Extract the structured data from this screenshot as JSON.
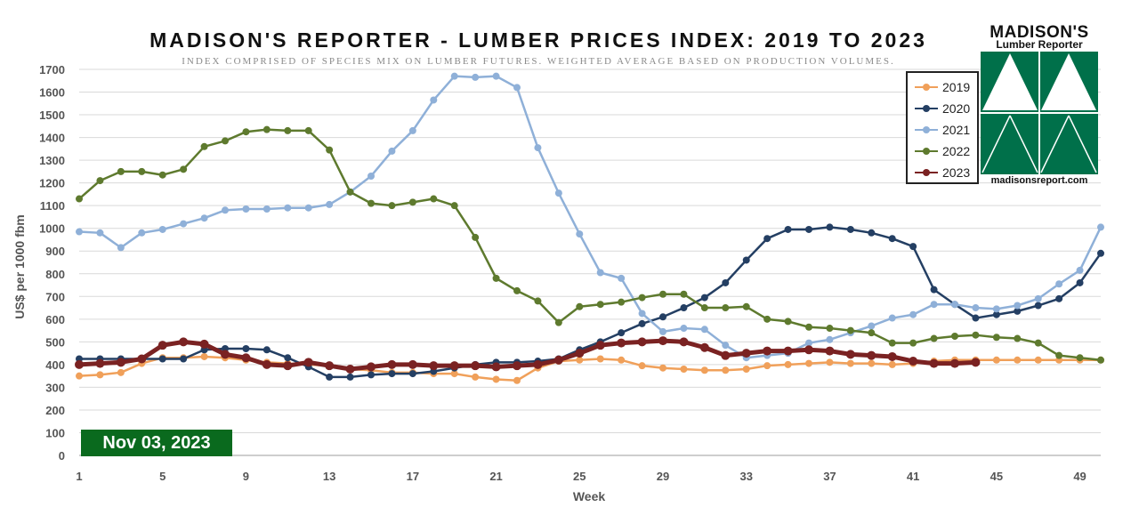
{
  "chart_data": {
    "type": "line",
    "title": "MADISON'S REPORTER - LUMBER PRICES INDEX: 2019 TO 2023",
    "subtitle": "INDEX COMPRISED OF SPECIES MIX ON LUMBER FUTURES. WEIGHTED AVERAGE BASED ON PRODUCTION VOLUMES.",
    "xlabel": "Week",
    "ylabel": "US$ per 1000 fbm",
    "xlim": [
      1,
      50
    ],
    "ylim": [
      0,
      1700
    ],
    "x_ticks": [
      1,
      5,
      9,
      13,
      17,
      21,
      25,
      29,
      33,
      37,
      41,
      45,
      49
    ],
    "y_ticks": [
      0,
      100,
      200,
      300,
      400,
      500,
      600,
      700,
      800,
      900,
      1000,
      1100,
      1200,
      1300,
      1400,
      1500,
      1600,
      1700
    ],
    "grid": "horizontal",
    "legend_position": "top-right",
    "series": [
      {
        "name": "2019",
        "color": "#f0a05a",
        "values": [
          350,
          355,
          365,
          405,
          430,
          430,
          435,
          430,
          420,
          410,
          405,
          400,
          395,
          380,
          375,
          365,
          365,
          360,
          360,
          345,
          335,
          330,
          385,
          415,
          420,
          425,
          420,
          395,
          385,
          380,
          375,
          375,
          380,
          395,
          400,
          405,
          410,
          405,
          405,
          400,
          405,
          415,
          420,
          420,
          420,
          420,
          420,
          420,
          420,
          420
        ]
      },
      {
        "name": "2020",
        "color": "#243f63",
        "values": [
          425,
          425,
          425,
          425,
          425,
          425,
          465,
          470,
          470,
          465,
          430,
          390,
          345,
          345,
          355,
          360,
          360,
          370,
          385,
          400,
          410,
          410,
          415,
          425,
          465,
          500,
          540,
          580,
          610,
          650,
          695,
          760,
          860,
          955,
          995,
          995,
          1005,
          995,
          980,
          955,
          920,
          730,
          665,
          605,
          620,
          635,
          660,
          690,
          760,
          890
        ]
      },
      {
        "name": "2021",
        "color": "#8fb0d8",
        "values": [
          985,
          980,
          915,
          980,
          995,
          1020,
          1045,
          1080,
          1085,
          1085,
          1090,
          1090,
          1105,
          1160,
          1230,
          1340,
          1430,
          1565,
          1670,
          1665,
          1670,
          1620,
          1355,
          1155,
          975,
          805,
          780,
          625,
          545,
          560,
          555,
          485,
          430,
          440,
          450,
          495,
          510,
          540,
          570,
          605,
          620,
          665,
          665,
          650,
          645,
          660,
          690,
          755,
          815,
          1005
        ]
      },
      {
        "name": "2022",
        "color": "#5e7a2e",
        "values": [
          1130,
          1210,
          1250,
          1250,
          1235,
          1260,
          1360,
          1385,
          1425,
          1435,
          1430,
          1430,
          1345,
          1160,
          1110,
          1100,
          1115,
          1130,
          1100,
          960,
          780,
          725,
          680,
          585,
          655,
          665,
          675,
          695,
          710,
          710,
          650,
          650,
          655,
          600,
          590,
          565,
          560,
          550,
          540,
          495,
          495,
          515,
          525,
          530,
          520,
          515,
          495,
          440,
          430,
          420
        ]
      },
      {
        "name": "2023",
        "color": "#7a2222",
        "values": [
          400,
          405,
          410,
          425,
          485,
          500,
          490,
          445,
          430,
          400,
          395,
          410,
          395,
          380,
          390,
          400,
          400,
          395,
          395,
          395,
          390,
          395,
          400,
          420,
          450,
          485,
          495,
          500,
          505,
          500,
          475,
          440,
          450,
          460,
          460,
          465,
          460,
          445,
          440,
          435,
          415,
          405,
          405,
          410
        ]
      }
    ]
  },
  "legend": {
    "items": [
      {
        "label": "2019",
        "color": "#f0a05a"
      },
      {
        "label": "2020",
        "color": "#243f63"
      },
      {
        "label": "2021",
        "color": "#8fb0d8"
      },
      {
        "label": "2022",
        "color": "#5e7a2e"
      },
      {
        "label": "2023",
        "color": "#7a2222"
      }
    ]
  },
  "date_badge": "Nov 03, 2023",
  "logo": {
    "name": "MADISON'S",
    "subtitle": "Lumber Reporter",
    "url": "madisonsreport.com",
    "color": "#00704a"
  }
}
